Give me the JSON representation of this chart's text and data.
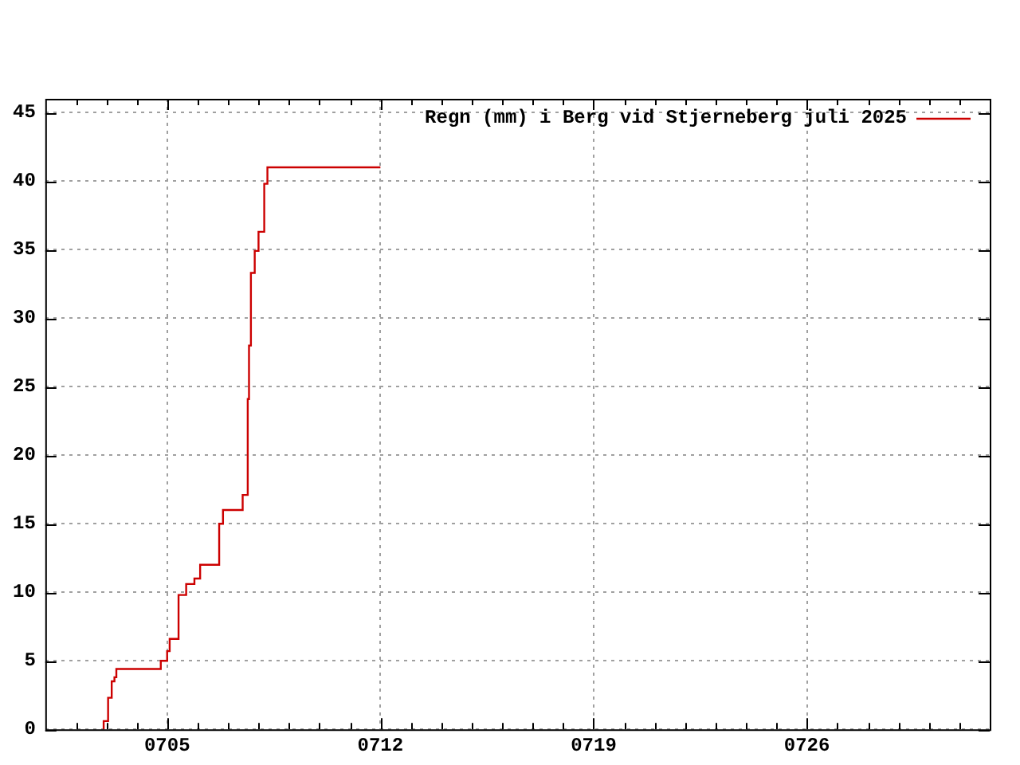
{
  "chart_data": {
    "type": "step",
    "xlim": [
      "2025-07-01",
      "2025-08-01"
    ],
    "ylim": [
      0,
      46
    ],
    "xticks": [
      {
        "value": "2025-07-02",
        "label": null
      },
      {
        "value": "2025-07-03",
        "label": null
      },
      {
        "value": "2025-07-04",
        "label": null
      },
      {
        "value": "2025-07-05",
        "label": "0705"
      },
      {
        "value": "2025-07-06",
        "label": null
      },
      {
        "value": "2025-07-07",
        "label": null
      },
      {
        "value": "2025-07-08",
        "label": null
      },
      {
        "value": "2025-07-09",
        "label": null
      },
      {
        "value": "2025-07-10",
        "label": null
      },
      {
        "value": "2025-07-11",
        "label": null
      },
      {
        "value": "2025-07-12",
        "label": "0712"
      },
      {
        "value": "2025-07-13",
        "label": null
      },
      {
        "value": "2025-07-14",
        "label": null
      },
      {
        "value": "2025-07-15",
        "label": null
      },
      {
        "value": "2025-07-16",
        "label": null
      },
      {
        "value": "2025-07-17",
        "label": null
      },
      {
        "value": "2025-07-18",
        "label": null
      },
      {
        "value": "2025-07-19",
        "label": "0719"
      },
      {
        "value": "2025-07-20",
        "label": null
      },
      {
        "value": "2025-07-21",
        "label": null
      },
      {
        "value": "2025-07-22",
        "label": null
      },
      {
        "value": "2025-07-23",
        "label": null
      },
      {
        "value": "2025-07-24",
        "label": null
      },
      {
        "value": "2025-07-25",
        "label": null
      },
      {
        "value": "2025-07-26",
        "label": "0726"
      },
      {
        "value": "2025-07-27",
        "label": null
      },
      {
        "value": "2025-07-28",
        "label": null
      },
      {
        "value": "2025-07-29",
        "label": null
      },
      {
        "value": "2025-07-30",
        "label": null
      },
      {
        "value": "2025-07-31",
        "label": null
      }
    ],
    "yticks": [
      0,
      5,
      10,
      15,
      20,
      25,
      30,
      35,
      40,
      45
    ],
    "grid": true,
    "legend": "top right",
    "x": [
      "2025-07-02T22:00",
      "2025-07-03T01:30",
      "2025-07-03T04:20",
      "2025-07-03T06:30",
      "2025-07-03T08:00",
      "2025-07-04T19:00",
      "2025-07-05T00:00",
      "2025-07-05T02:00",
      "2025-07-05T09:00",
      "2025-07-05T15:00",
      "2025-07-05T21:30",
      "2025-07-06T02:00",
      "2025-07-06T17:00",
      "2025-07-06T20:00",
      "2025-07-07T11:30",
      "2025-07-07T15:30",
      "2025-07-07T16:30",
      "2025-07-07T18:00",
      "2025-07-07T21:00",
      "2025-07-08T00:00",
      "2025-07-08T04:30",
      "2025-07-08T07:00",
      "2025-07-08T10:00",
      "2025-07-12T00:00"
    ],
    "series": [
      {
        "name": "Regn (mm) i Berg vid Stjerneberg juli 2025",
        "color": "#cc0000",
        "values": [
          0,
          0.6,
          2.3,
          3.5,
          3.8,
          4.4,
          5.0,
          5.7,
          6.6,
          9.8,
          10.6,
          11.0,
          12.0,
          15.0,
          16.0,
          17.1,
          24.1,
          28.0,
          33.3,
          34.9,
          36.3,
          39.8,
          41.0,
          41.0
        ]
      }
    ]
  }
}
